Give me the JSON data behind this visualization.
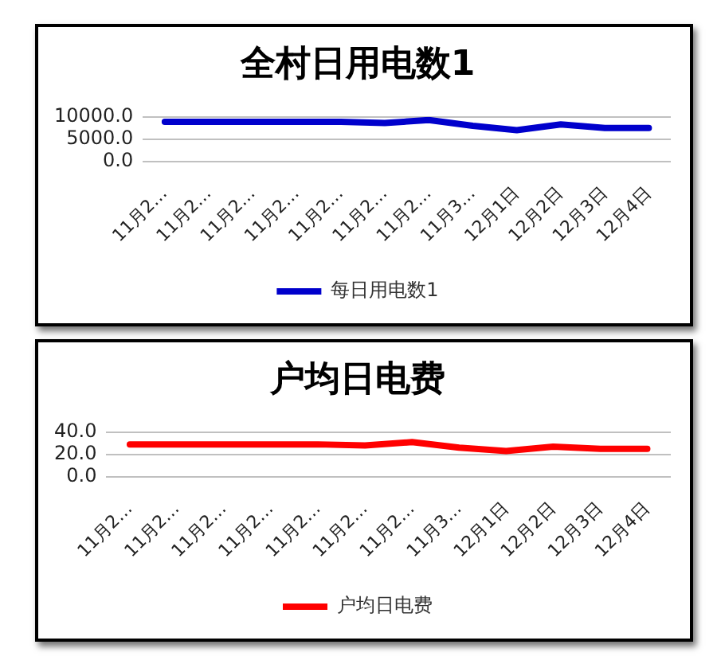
{
  "chart_data": [
    {
      "type": "line",
      "title": "全村日用电数1",
      "categories": [
        "11月2…",
        "11月2…",
        "11月2…",
        "11月2…",
        "11月2…",
        "11月2…",
        "11月2…",
        "11月3…",
        "12月1日",
        "12月2日",
        "12月3日",
        "12月4日"
      ],
      "series": [
        {
          "name": "每日用电数1",
          "color": "#0000cc",
          "values": [
            8900,
            8900,
            8900,
            8900,
            8900,
            8600,
            9300,
            8000,
            7000,
            8300,
            7500,
            7500
          ]
        }
      ],
      "ylim": [
        0,
        10000
      ],
      "yticks": [
        {
          "value": 0,
          "label": "0.0"
        },
        {
          "value": 5000,
          "label": "5000.0"
        },
        {
          "value": 10000,
          "label": "10000.0"
        }
      ],
      "grid": "y",
      "legend": "bottom",
      "marker": "none",
      "line_style": "solid"
    },
    {
      "type": "line",
      "title": "户均日电费",
      "categories": [
        "11月2…",
        "11月2…",
        "11月2…",
        "11月2…",
        "11月2…",
        "11月2…",
        "11月2…",
        "11月3…",
        "12月1日",
        "12月2日",
        "12月3日",
        "12月4日"
      ],
      "series": [
        {
          "name": "户均日电费",
          "color": "#ff0000",
          "values": [
            29,
            29,
            29,
            29,
            29,
            28,
            31,
            26,
            23,
            27,
            25,
            25
          ]
        }
      ],
      "ylim": [
        0,
        40
      ],
      "yticks": [
        {
          "value": 0,
          "label": "0.0"
        },
        {
          "value": 20,
          "label": "20.0"
        },
        {
          "value": 40,
          "label": "40.0"
        }
      ],
      "grid": "y",
      "legend": "bottom",
      "marker": "none",
      "line_style": "solid"
    }
  ]
}
